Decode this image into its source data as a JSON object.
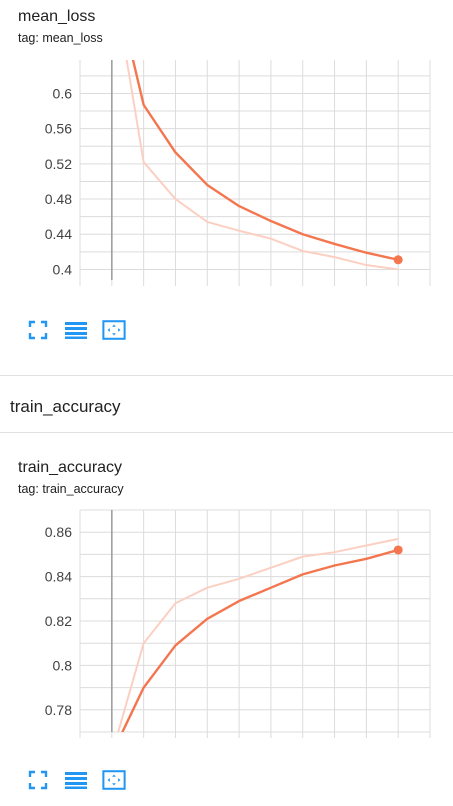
{
  "sections": [
    {
      "heading": ""
    },
    {
      "heading": "train_accuracy"
    }
  ],
  "toolbar_icons": [
    "fullscreen-icon",
    "data-list-icon",
    "fit-domain-icon"
  ],
  "colors": {
    "series_line": "#f4764f",
    "series_raw": "#fbd0c2",
    "grid": "#dcdcdc",
    "axis_marker": "#9e9e9e",
    "tool_icon": "#2196f3"
  },
  "chart_data": [
    {
      "type": "line",
      "title": "mean_loss",
      "tag": "tag: mean_loss",
      "xlabel": "",
      "ylabel": "",
      "xlim": [
        -1,
        10
      ],
      "ylim": [
        0.388,
        0.638
      ],
      "yticks": [
        "0.6",
        "0.56",
        "0.52",
        "0.48",
        "0.44",
        "0.4"
      ],
      "ytick_values": [
        0.6,
        0.56,
        0.52,
        0.48,
        0.44,
        0.4
      ],
      "grid": true,
      "series": [
        {
          "role": "smoothed",
          "color": "#f4764f",
          "x": [
            0,
            1,
            2,
            3,
            4,
            5,
            6,
            7,
            8,
            9
          ],
          "y": [
            0.74,
            0.587,
            0.533,
            0.496,
            0.472,
            0.455,
            0.44,
            0.429,
            0.419,
            0.411
          ]
        },
        {
          "role": "raw",
          "color": "#fbd0c2",
          "x": [
            0,
            1,
            2,
            3,
            4,
            5,
            6,
            7,
            8,
            9
          ],
          "y": [
            0.74,
            0.522,
            0.48,
            0.454,
            0.444,
            0.435,
            0.421,
            0.414,
            0.405,
            0.4
          ]
        }
      ]
    },
    {
      "type": "line",
      "title": "train_accuracy",
      "tag": "tag: train_accuracy",
      "xlabel": "",
      "ylabel": "",
      "xlim": [
        -1,
        10
      ],
      "ylim": [
        0.77,
        0.87
      ],
      "yticks": [
        "0.86",
        "0.84",
        "0.82",
        "0.8",
        "0.78"
      ],
      "ytick_values": [
        0.86,
        0.84,
        0.82,
        0.8,
        0.78
      ],
      "grid": true,
      "series": [
        {
          "role": "smoothed",
          "color": "#f4764f",
          "x": [
            0,
            1,
            2,
            3,
            4,
            5,
            6,
            7,
            8,
            9
          ],
          "y": [
            0.76,
            0.79,
            0.809,
            0.821,
            0.829,
            0.835,
            0.841,
            0.845,
            0.848,
            0.852
          ]
        },
        {
          "role": "raw",
          "color": "#fbd0c2",
          "x": [
            0,
            1,
            2,
            3,
            4,
            5,
            6,
            7,
            8,
            9
          ],
          "y": [
            0.76,
            0.81,
            0.828,
            0.835,
            0.839,
            0.844,
            0.849,
            0.851,
            0.854,
            0.857
          ]
        }
      ]
    }
  ]
}
